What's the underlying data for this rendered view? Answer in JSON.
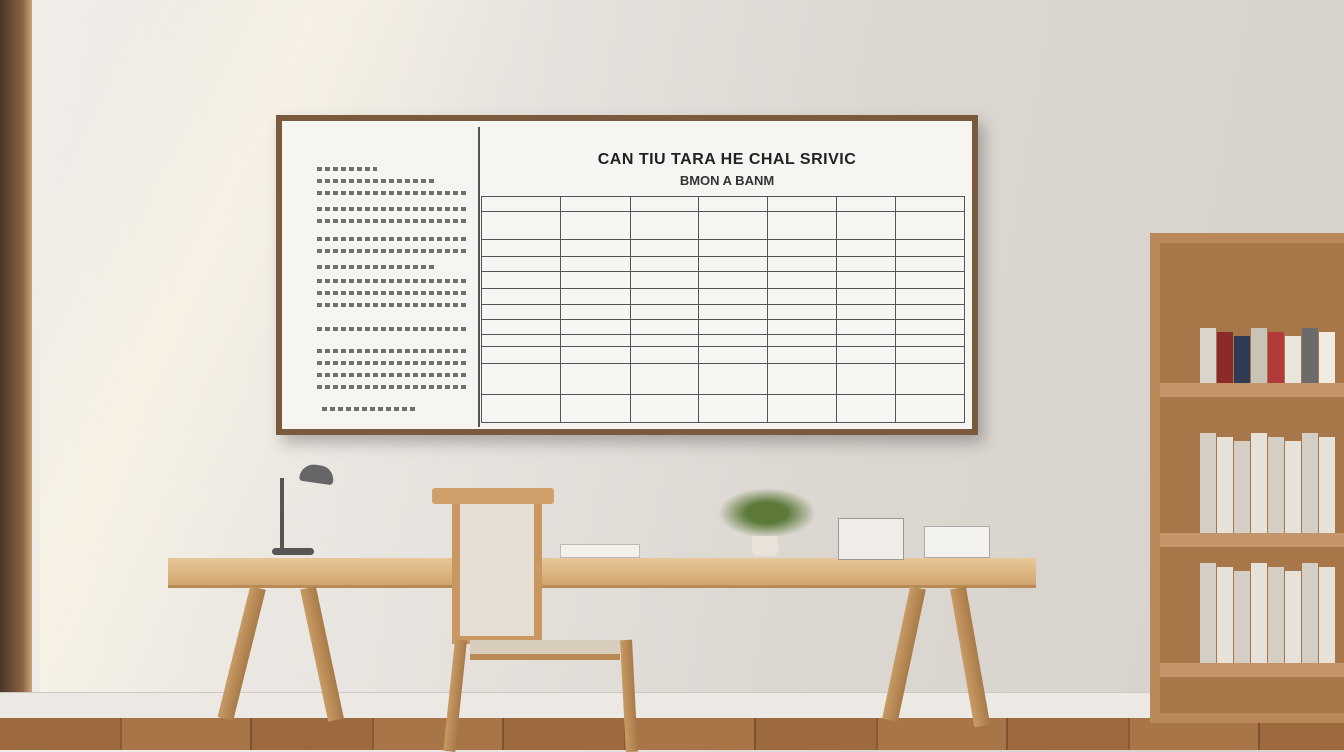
{
  "scene": {
    "board": {
      "title": "CAN TIU TARA HE CHAL SRIVIC",
      "subtitle": "BMON A BANM"
    },
    "colors": {
      "wall": "#e9e5e0",
      "frame": "#7a5a3c",
      "desk": "#d9ae78",
      "floor": "#9c6a3e",
      "shelf": "#a7774a"
    }
  }
}
